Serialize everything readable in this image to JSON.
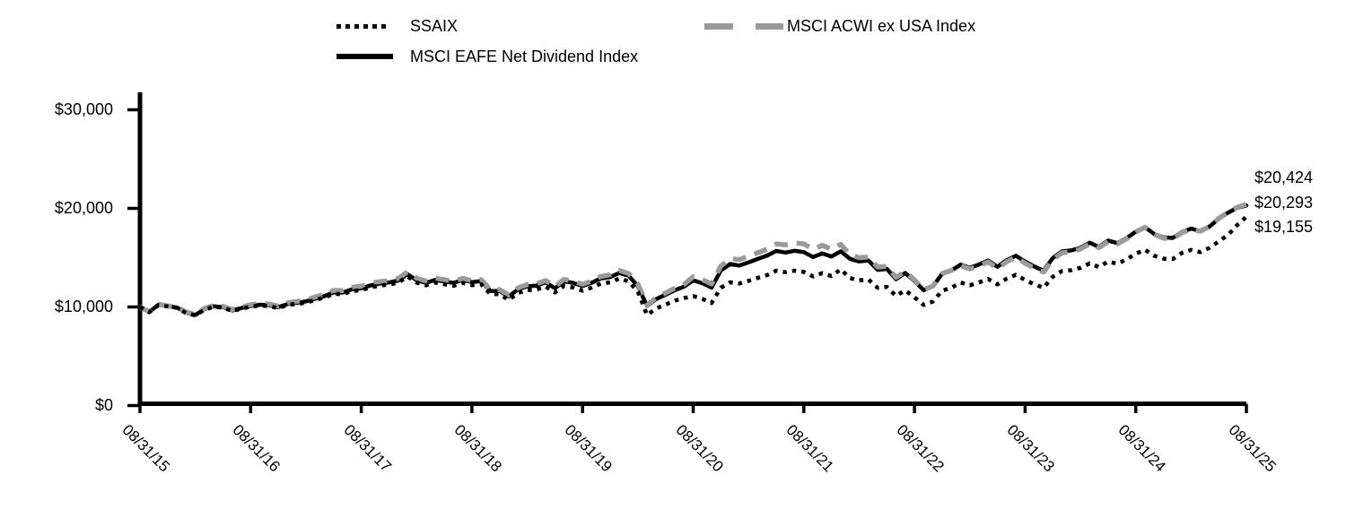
{
  "legend": {
    "items": [
      {
        "label": "SSAIX",
        "style": "dotted",
        "color": "#000000"
      },
      {
        "label": "MSCI EAFE Net Dividend Index",
        "style": "solid",
        "color": "#000000"
      },
      {
        "label": "MSCI ACWI ex USA Index",
        "style": "dashed",
        "color": "#9a9a9a"
      }
    ]
  },
  "chart_data": {
    "type": "line",
    "title": "",
    "xlabel": "",
    "ylabel": "",
    "x_frequency": "monthly",
    "x_range": [
      "08/31/15",
      "08/31/25"
    ],
    "ylim": [
      0,
      33000
    ],
    "grid": false,
    "legend_position": "top",
    "x_tick_labels": [
      "08/31/15",
      "08/31/16",
      "08/31/17",
      "08/31/18",
      "08/31/19",
      "08/31/20",
      "08/31/21",
      "08/31/22",
      "08/31/23",
      "08/31/24",
      "08/31/25"
    ],
    "y_tick_labels": [
      "$0",
      "$10,000",
      "$20,000",
      "$30,000"
    ],
    "y_tick_values": [
      0,
      10000,
      20000,
      30000
    ],
    "end_labels": [
      "$20,424",
      "$20,293",
      "$19,155"
    ],
    "series": [
      {
        "name": "SSAIX",
        "style": "dotted",
        "color": "#000000",
        "end_label": "$19,155",
        "final_value": 19155,
        "values": [
          10000,
          9470,
          10200,
          10050,
          9910,
          9380,
          9150,
          9730,
          10010,
          9920,
          9590,
          9830,
          10030,
          10150,
          10090,
          9880,
          10200,
          10310,
          10440,
          10710,
          10960,
          11330,
          11300,
          11620,
          11710,
          11990,
          12170,
          12270,
          12460,
          13090,
          12470,
          12200,
          12470,
          12310,
          12150,
          12450,
          12210,
          12310,
          11310,
          11290,
          10720,
          11410,
          11700,
          11760,
          12080,
          11470,
          12140,
          11970,
          11650,
          11960,
          12380,
          12500,
          12890,
          12590,
          11550,
          9180,
          9850,
          10250,
          10650,
          10900,
          11100,
          10820,
          10400,
          11950,
          12500,
          12380,
          12650,
          12950,
          13230,
          13680,
          13530,
          13680,
          13550,
          13100,
          13440,
          13140,
          13820,
          12930,
          12700,
          12790,
          11950,
          12040,
          11130,
          11680,
          10980,
          10200,
          10550,
          11650,
          11950,
          12480,
          12200,
          12490,
          12840,
          12290,
          12870,
          13260,
          12740,
          12300,
          11950,
          13060,
          13650,
          13730,
          13970,
          14420,
          14050,
          14610,
          14380,
          14820,
          15410,
          15800,
          15190,
          14900,
          14850,
          15480,
          15780,
          15560,
          16000,
          16650,
          17300,
          18300,
          19155
        ]
      },
      {
        "name": "MSCI EAFE Net Dividend Index",
        "style": "solid",
        "color": "#000000",
        "end_label": "$20,293",
        "final_value": 20293,
        "values": [
          10000,
          9490,
          10230,
          10080,
          9950,
          9420,
          9190,
          9780,
          10070,
          9980,
          9650,
          9890,
          10100,
          10230,
          10180,
          9970,
          10300,
          10420,
          10560,
          10840,
          11100,
          11480,
          11460,
          11790,
          11890,
          12180,
          12370,
          12480,
          12680,
          13330,
          12720,
          12450,
          12740,
          12590,
          12440,
          12750,
          12520,
          12630,
          11630,
          11620,
          11060,
          11780,
          12090,
          12160,
          12500,
          11900,
          12600,
          12440,
          12130,
          12460,
          12900,
          13040,
          13450,
          13160,
          12110,
          10100,
          10800,
          11250,
          11700,
          12050,
          12700,
          12410,
          11960,
          13700,
          14350,
          14200,
          14520,
          14870,
          15200,
          15680,
          15520,
          15700,
          15560,
          15060,
          15440,
          15120,
          15650,
          14880,
          14620,
          14720,
          13760,
          13860,
          12820,
          13450,
          12640,
          11700,
          12100,
          13350,
          13690,
          14290,
          13980,
          14310,
          14710,
          14080,
          14740,
          15190,
          14600,
          14100,
          13690,
          14960,
          15640,
          15740,
          16000,
          16520,
          16100,
          16740,
          16480,
          16980,
          17650,
          18100,
          17400,
          17060,
          17000,
          17600,
          17950,
          17700,
          18150,
          18950,
          19550,
          20050,
          20293
        ]
      },
      {
        "name": "MSCI ACWI ex USA Index",
        "style": "dashed",
        "color": "#9a9a9a",
        "end_label": "$20,424",
        "final_value": 20424,
        "values": [
          10000,
          9520,
          10280,
          10110,
          9990,
          9480,
          9260,
          9860,
          10160,
          10060,
          9740,
          10000,
          10220,
          10360,
          10300,
          10080,
          10420,
          10560,
          10710,
          11010,
          11280,
          11670,
          11660,
          12000,
          12110,
          12390,
          12570,
          12670,
          12880,
          13550,
          12920,
          12640,
          12930,
          12760,
          12590,
          12900,
          12660,
          12770,
          11750,
          11760,
          11190,
          11950,
          12260,
          12340,
          12690,
          12080,
          12800,
          12620,
          12300,
          12640,
          13100,
          13260,
          13700,
          13390,
          12320,
          10150,
          10950,
          11420,
          11900,
          12280,
          13050,
          12760,
          12330,
          14150,
          14900,
          14800,
          15150,
          15500,
          15850,
          16400,
          16300,
          16500,
          16400,
          15850,
          16250,
          15850,
          16350,
          15300,
          15000,
          15050,
          14050,
          14110,
          13000,
          13600,
          12750,
          11750,
          12130,
          13400,
          13700,
          14200,
          13850,
          14180,
          14560,
          13920,
          14580,
          15050,
          14430,
          13940,
          13540,
          14800,
          15500,
          15600,
          15870,
          16400,
          16010,
          16630,
          16400,
          16900,
          17600,
          18080,
          17350,
          16980,
          16900,
          17530,
          17900,
          17680,
          18160,
          18980,
          19600,
          20100,
          20424
        ]
      }
    ]
  }
}
